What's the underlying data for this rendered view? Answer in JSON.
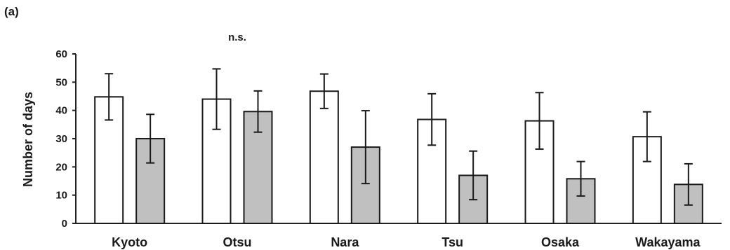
{
  "panel_label": "(a)",
  "chart_data": {
    "type": "bar",
    "title": "",
    "xlabel": "",
    "ylabel": "Number of days",
    "ylim": [
      0,
      60
    ],
    "yticks": [
      0,
      10,
      20,
      30,
      40,
      50,
      60
    ],
    "grid": false,
    "categories": [
      "Kyoto",
      "Otsu",
      "Nara",
      "Tsu",
      "Osaka",
      "Wakayama"
    ],
    "series": [
      {
        "values": [
          44.8,
          44.0,
          46.8,
          36.8,
          36.3,
          30.7
        ],
        "error": [
          8.2,
          10.7,
          6.1,
          9.1,
          10.0,
          8.8
        ],
        "color": "#ffffff"
      },
      {
        "values": [
          30.0,
          39.6,
          27.0,
          17.0,
          15.8,
          13.8
        ],
        "error": [
          8.6,
          7.3,
          12.9,
          8.6,
          6.1,
          7.3
        ],
        "color": "#c0c0c0"
      }
    ],
    "annotations": [
      {
        "category": "Otsu",
        "text": "n.s."
      }
    ]
  }
}
